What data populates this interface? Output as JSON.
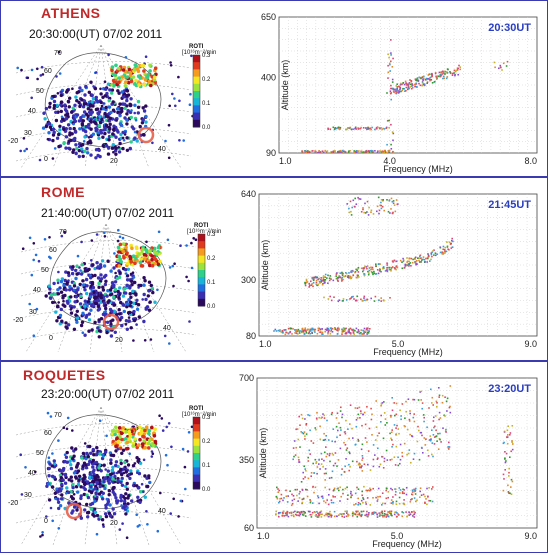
{
  "panels": [
    {
      "station": "ATHENS",
      "timestamp": "20:30:00(UT)   07/02 2011",
      "ut_label": "20:30UT",
      "colorbar": {
        "title": "ROTI",
        "units": "[10¹⁶m⁻²/min]",
        "ticks": [
          "0.3",
          "0.2",
          "0.1",
          "0.0"
        ]
      },
      "map_lat_labels": [
        "70",
        "60",
        "50",
        "40",
        "30",
        "-20",
        "0",
        "20",
        "40"
      ],
      "chart_data": {
        "type": "scatter",
        "xlabel": "Frequency (MHz)",
        "ylabel": "Altitude (km)",
        "xlim": [
          1.0,
          8.0
        ],
        "ylim": [
          90,
          650
        ],
        "x_ticks": [
          "1.0",
          "4.0",
          "8.0"
        ],
        "y_ticks": [
          "650",
          "400",
          "90"
        ],
        "grid": true
      }
    },
    {
      "station": "ROME",
      "timestamp": "21:40:00(UT)   07/02 2011",
      "ut_label": "21:45UT",
      "colorbar": {
        "title": "ROTI",
        "units": "[10¹⁶m⁻²/min]",
        "ticks": [
          "0.3",
          "0.2",
          "0.1",
          "0.0"
        ]
      },
      "map_lat_labels": [
        "70",
        "60",
        "50",
        "40",
        "30",
        "-20",
        "0",
        "20",
        "40"
      ],
      "chart_data": {
        "type": "scatter",
        "xlabel": "Frequency (MHz)",
        "ylabel": "Altitude (km)",
        "xlim": [
          1.0,
          9.0
        ],
        "ylim": [
          80,
          640
        ],
        "x_ticks": [
          "1.0",
          "5.0",
          "9.0"
        ],
        "y_ticks": [
          "640",
          "300",
          "80"
        ],
        "grid": true
      }
    },
    {
      "station": "ROQUETES",
      "timestamp": "23:20:00(UT)   07/02 2011",
      "ut_label": "23:20UT",
      "colorbar": {
        "title": "ROTI",
        "units": "[10¹⁶m⁻²/min]",
        "ticks": [
          "0.3",
          "0.2",
          "0.1",
          "0.0"
        ]
      },
      "map_lat_labels": [
        "70",
        "60",
        "50",
        "40",
        "30",
        "-20",
        "0",
        "20",
        "40"
      ],
      "chart_data": {
        "type": "scatter",
        "xlabel": "Frequency (MHz)",
        "ylabel": "Altitude (km)",
        "xlim": [
          1.0,
          9.0
        ],
        "ylim": [
          60,
          700
        ],
        "x_ticks": [
          "1.0",
          "5.0",
          "9.0"
        ],
        "y_ticks": [
          "700",
          "350",
          "60"
        ],
        "grid": true
      }
    }
  ]
}
